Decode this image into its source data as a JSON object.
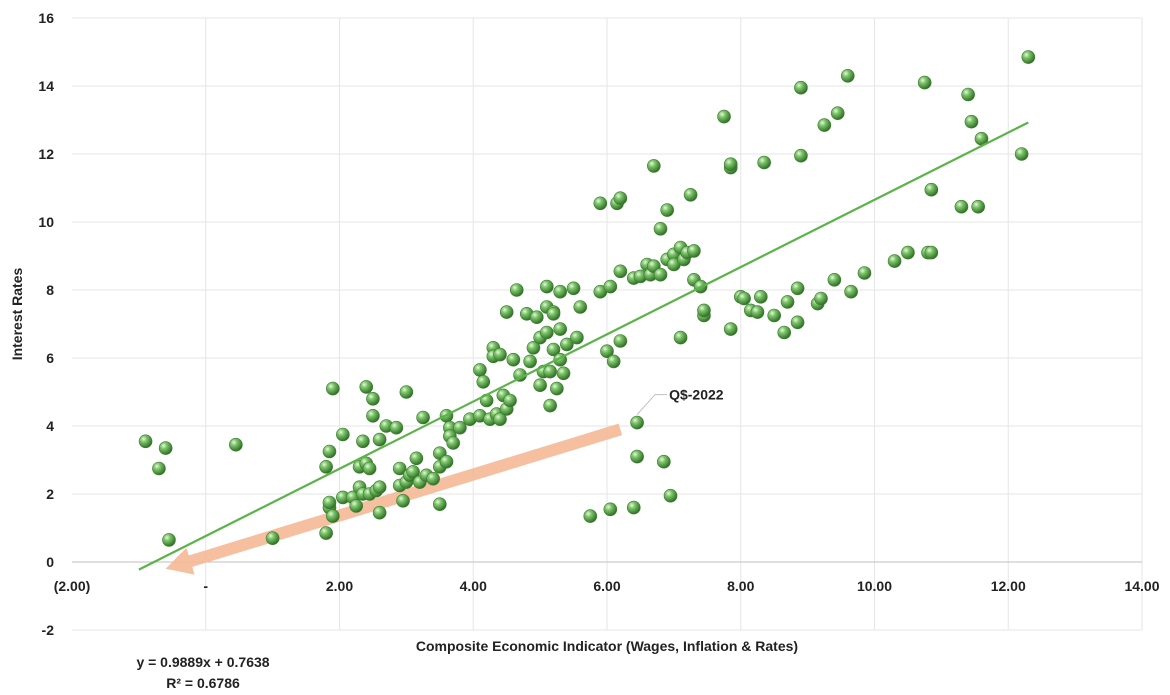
{
  "chart_data": {
    "type": "scatter",
    "title": "",
    "xlabel": "Composite Economic Indicator (Wages, Inflation & Rates)",
    "ylabel": "Interest Rates",
    "xlim": [
      -2,
      14
    ],
    "ylim": [
      -2,
      16
    ],
    "x_ticks": [
      {
        "value": -2,
        "label": "(2.00)"
      },
      {
        "value": 0,
        "label": "-"
      },
      {
        "value": 2,
        "label": "2.00"
      },
      {
        "value": 4,
        "label": "4.00"
      },
      {
        "value": 6,
        "label": "6.00"
      },
      {
        "value": 8,
        "label": "8.00"
      },
      {
        "value": 10,
        "label": "10.00"
      },
      {
        "value": 12,
        "label": "12.00"
      },
      {
        "value": 14,
        "label": "14.00"
      }
    ],
    "y_ticks": [
      {
        "value": -2,
        "label": "-2"
      },
      {
        "value": 0,
        "label": "0"
      },
      {
        "value": 2,
        "label": "2"
      },
      {
        "value": 4,
        "label": "4"
      },
      {
        "value": 6,
        "label": "6"
      },
      {
        "value": 8,
        "label": "8"
      },
      {
        "value": 10,
        "label": "10"
      },
      {
        "value": 12,
        "label": "12"
      },
      {
        "value": 14,
        "label": "14"
      },
      {
        "value": 16,
        "label": "16"
      }
    ],
    "grid": true,
    "colors": {
      "points": "#4a9a3a",
      "trendline": "#5cb34a",
      "arrow": "#f4b896",
      "grid": "#e6e6e6"
    },
    "trendline": {
      "slope": 0.9889,
      "intercept": 0.7638,
      "x_range": [
        -1,
        12.3
      ]
    },
    "equation_label": "y = 0.9889x + 0.7638",
    "r2_label": "R² = 0.6786",
    "annotation": {
      "label": "Q$-2022",
      "x": 6.45,
      "y": 4.1
    },
    "arrow": {
      "from": [
        6.2,
        3.9
      ],
      "to": [
        -0.6,
        -0.2
      ]
    },
    "points": [
      [
        -0.9,
        3.55
      ],
      [
        -0.7,
        2.75
      ],
      [
        -0.6,
        3.35
      ],
      [
        -0.55,
        0.65
      ],
      [
        0.45,
        3.45
      ],
      [
        1.0,
        0.7
      ],
      [
        1.8,
        0.85
      ],
      [
        1.8,
        2.8
      ],
      [
        1.85,
        1.6
      ],
      [
        1.85,
        1.75
      ],
      [
        1.85,
        3.25
      ],
      [
        1.9,
        1.35
      ],
      [
        1.9,
        5.1
      ],
      [
        2.05,
        3.75
      ],
      [
        2.05,
        1.9
      ],
      [
        2.2,
        1.9
      ],
      [
        2.25,
        1.65
      ],
      [
        2.3,
        2.2
      ],
      [
        2.3,
        2.8
      ],
      [
        2.35,
        2.0
      ],
      [
        2.35,
        3.55
      ],
      [
        2.4,
        2.9
      ],
      [
        2.4,
        5.15
      ],
      [
        2.45,
        2.75
      ],
      [
        2.45,
        2.0
      ],
      [
        2.5,
        4.3
      ],
      [
        2.5,
        4.8
      ],
      [
        2.55,
        2.1
      ],
      [
        2.6,
        1.45
      ],
      [
        2.6,
        2.2
      ],
      [
        2.6,
        3.6
      ],
      [
        2.7,
        4.0
      ],
      [
        2.85,
        3.95
      ],
      [
        2.9,
        2.25
      ],
      [
        2.9,
        2.75
      ],
      [
        2.95,
        1.8
      ],
      [
        3.0,
        2.35
      ],
      [
        3.0,
        5.0
      ],
      [
        3.05,
        2.55
      ],
      [
        3.1,
        2.65
      ],
      [
        3.15,
        3.05
      ],
      [
        3.2,
        2.35
      ],
      [
        3.25,
        4.25
      ],
      [
        3.3,
        2.55
      ],
      [
        3.4,
        2.45
      ],
      [
        3.5,
        2.8
      ],
      [
        3.5,
        3.2
      ],
      [
        3.5,
        1.7
      ],
      [
        3.6,
        2.95
      ],
      [
        3.6,
        4.3
      ],
      [
        3.65,
        3.95
      ],
      [
        3.65,
        3.7
      ],
      [
        3.7,
        3.5
      ],
      [
        3.8,
        3.95
      ],
      [
        3.95,
        4.2
      ],
      [
        4.1,
        4.3
      ],
      [
        4.1,
        5.65
      ],
      [
        4.15,
        5.3
      ],
      [
        4.2,
        4.75
      ],
      [
        4.25,
        4.2
      ],
      [
        4.3,
        6.3
      ],
      [
        4.3,
        6.05
      ],
      [
        4.35,
        4.35
      ],
      [
        4.4,
        4.2
      ],
      [
        4.4,
        6.1
      ],
      [
        4.45,
        4.9
      ],
      [
        4.5,
        7.35
      ],
      [
        4.5,
        4.5
      ],
      [
        4.55,
        4.75
      ],
      [
        4.6,
        5.95
      ],
      [
        4.65,
        8.0
      ],
      [
        4.7,
        5.5
      ],
      [
        4.8,
        7.3
      ],
      [
        4.85,
        5.9
      ],
      [
        4.9,
        6.3
      ],
      [
        4.95,
        7.2
      ],
      [
        5.0,
        5.2
      ],
      [
        5.0,
        6.6
      ],
      [
        5.05,
        5.6
      ],
      [
        5.1,
        8.1
      ],
      [
        5.1,
        7.5
      ],
      [
        5.1,
        6.75
      ],
      [
        5.15,
        4.6
      ],
      [
        5.15,
        5.6
      ],
      [
        5.2,
        7.35
      ],
      [
        5.2,
        7.3
      ],
      [
        5.2,
        6.25
      ],
      [
        5.25,
        5.1
      ],
      [
        5.3,
        6.85
      ],
      [
        5.3,
        7.95
      ],
      [
        5.3,
        5.95
      ],
      [
        5.35,
        5.55
      ],
      [
        5.4,
        6.4
      ],
      [
        5.5,
        8.05
      ],
      [
        5.55,
        6.6
      ],
      [
        5.6,
        7.5
      ],
      [
        5.75,
        1.35
      ],
      [
        5.9,
        7.95
      ],
      [
        5.9,
        10.55
      ],
      [
        6.0,
        6.2
      ],
      [
        6.05,
        8.1
      ],
      [
        6.05,
        1.55
      ],
      [
        6.1,
        5.9
      ],
      [
        6.15,
        10.55
      ],
      [
        6.2,
        10.7
      ],
      [
        6.2,
        8.55
      ],
      [
        6.2,
        6.5
      ],
      [
        6.4,
        8.35
      ],
      [
        6.4,
        1.6
      ],
      [
        6.45,
        4.1
      ],
      [
        6.45,
        3.1
      ],
      [
        6.5,
        8.4
      ],
      [
        6.6,
        8.75
      ],
      [
        6.65,
        8.45
      ],
      [
        6.7,
        8.7
      ],
      [
        6.7,
        11.65
      ],
      [
        6.8,
        8.45
      ],
      [
        6.8,
        9.8
      ],
      [
        6.85,
        2.95
      ],
      [
        6.9,
        10.35
      ],
      [
        6.9,
        8.9
      ],
      [
        6.95,
        1.95
      ],
      [
        7.0,
        9.05
      ],
      [
        7.0,
        8.75
      ],
      [
        7.1,
        9.25
      ],
      [
        7.1,
        6.6
      ],
      [
        7.15,
        8.9
      ],
      [
        7.2,
        9.1
      ],
      [
        7.25,
        10.8
      ],
      [
        7.3,
        9.15
      ],
      [
        7.3,
        8.3
      ],
      [
        7.4,
        8.1
      ],
      [
        7.45,
        7.25
      ],
      [
        7.45,
        7.4
      ],
      [
        7.75,
        13.1
      ],
      [
        7.85,
        11.6
      ],
      [
        7.85,
        11.7
      ],
      [
        7.85,
        6.85
      ],
      [
        8.0,
        7.8
      ],
      [
        8.05,
        7.75
      ],
      [
        8.15,
        7.4
      ],
      [
        8.25,
        7.35
      ],
      [
        8.3,
        7.8
      ],
      [
        8.35,
        11.75
      ],
      [
        8.5,
        7.25
      ],
      [
        8.65,
        6.75
      ],
      [
        8.7,
        7.65
      ],
      [
        8.85,
        8.05
      ],
      [
        8.85,
        7.05
      ],
      [
        8.9,
        11.95
      ],
      [
        8.9,
        13.95
      ],
      [
        9.15,
        7.6
      ],
      [
        9.2,
        7.75
      ],
      [
        9.25,
        12.85
      ],
      [
        9.4,
        8.3
      ],
      [
        9.45,
        13.2
      ],
      [
        9.6,
        14.3
      ],
      [
        9.65,
        7.95
      ],
      [
        9.85,
        8.5
      ],
      [
        10.3,
        8.85
      ],
      [
        10.5,
        9.1
      ],
      [
        10.75,
        14.1
      ],
      [
        10.8,
        9.1
      ],
      [
        10.85,
        10.95
      ],
      [
        10.85,
        9.1
      ],
      [
        11.3,
        10.45
      ],
      [
        11.4,
        13.75
      ],
      [
        11.45,
        12.95
      ],
      [
        11.55,
        10.45
      ],
      [
        11.6,
        12.45
      ],
      [
        12.2,
        12.0
      ],
      [
        12.3,
        14.85
      ]
    ]
  }
}
